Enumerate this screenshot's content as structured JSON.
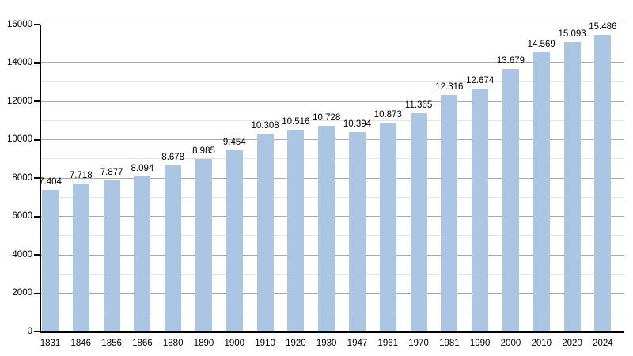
{
  "chart_data": {
    "type": "bar",
    "title": "",
    "xlabel": "",
    "ylabel": "",
    "categories": [
      "1831",
      "1846",
      "1856",
      "1866",
      "1880",
      "1890",
      "1900",
      "1910",
      "1920",
      "1930",
      "1947",
      "1961",
      "1970",
      "1981",
      "1990",
      "2000",
      "2010",
      "2020",
      "2024"
    ],
    "values": [
      7404,
      7718,
      7877,
      8094,
      8678,
      8985,
      9454,
      10308,
      10516,
      10728,
      10394,
      10873,
      11365,
      12316,
      12674,
      13679,
      14569,
      15093,
      15486
    ],
    "bar_labels": [
      "7.404",
      "7.718",
      "7.877",
      "8.094",
      "8.678",
      "8.985",
      "9.454",
      "10.308",
      "10.516",
      "10.728",
      "10.394",
      "10.873",
      "11.365",
      "12.316",
      "12.674",
      "13.679",
      "14.569",
      "15.093",
      "15.486"
    ],
    "ylim": [
      0,
      16000
    ],
    "yticks": [
      0,
      2000,
      4000,
      6000,
      8000,
      10000,
      12000,
      14000,
      16000
    ],
    "ytick_labels": [
      "0",
      "2000",
      "4000",
      "6000",
      "8000",
      "10000",
      "12000",
      "14000",
      "16000"
    ],
    "minor_grid_step": 1000,
    "major_grid_step": 2000,
    "grid": true,
    "legend": false,
    "colors": {
      "bar_fill": "#aac6e2",
      "major_grid": "#aaaaaa",
      "minor_grid": "#e4e4e4",
      "axis": "#000000",
      "text": "#000000",
      "background": "#ffffff"
    }
  }
}
